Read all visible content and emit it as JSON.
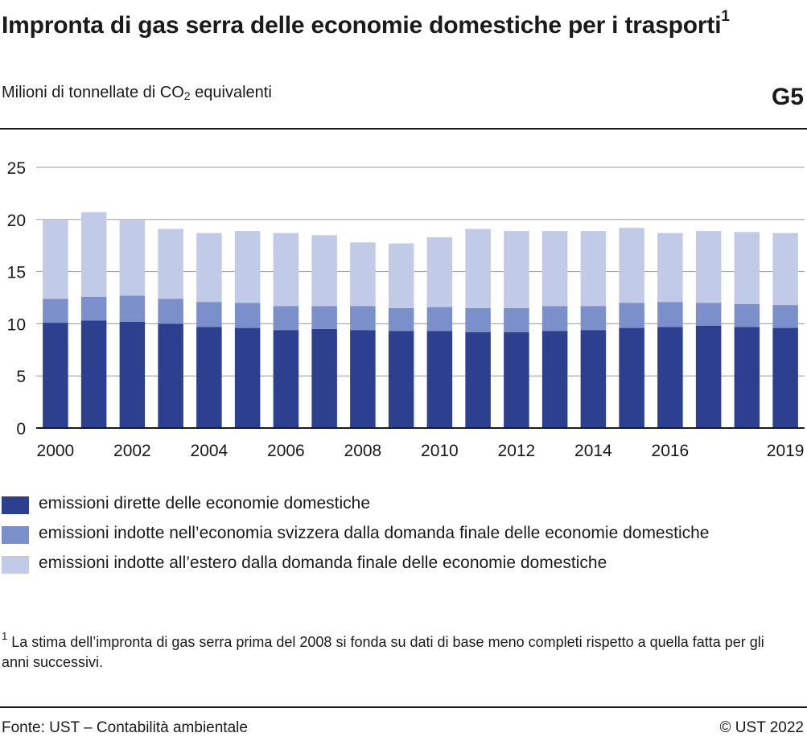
{
  "header": {
    "title": "Impronta di gas serra delle economie domestiche per i trasporti",
    "title_note": "1",
    "subtitle_pre": "Milioni di tonnellate di CO",
    "subtitle_sub": "2",
    "subtitle_post": " equivalenti",
    "code": "G5"
  },
  "chart_data": {
    "type": "bar",
    "stacked": true,
    "x": [
      2000,
      2001,
      2002,
      2003,
      2004,
      2005,
      2006,
      2007,
      2008,
      2009,
      2010,
      2011,
      2012,
      2013,
      2014,
      2015,
      2016,
      2017,
      2018,
      2019
    ],
    "xtick_labels": [
      "2000",
      "",
      "2002",
      "",
      "2004",
      "",
      "2006",
      "",
      "2008",
      "",
      "2010",
      "",
      "2012",
      "",
      "2014",
      "",
      "2016",
      "",
      "",
      "2019"
    ],
    "ylim": [
      0,
      25
    ],
    "yticks": [
      0,
      5,
      10,
      15,
      20,
      25
    ],
    "grid": true,
    "legend_position": "bottom",
    "series": [
      {
        "name": "emissioni dirette delle economie domestiche",
        "color": "#2d3f8f",
        "values": [
          10.1,
          10.3,
          10.2,
          10.0,
          9.7,
          9.6,
          9.4,
          9.5,
          9.4,
          9.3,
          9.3,
          9.2,
          9.2,
          9.3,
          9.4,
          9.6,
          9.7,
          9.8,
          9.7,
          9.6
        ]
      },
      {
        "name": "emissioni indotte nell’economia svizzera dalla domanda finale delle economie domestiche",
        "color": "#7b8fcb",
        "values": [
          2.3,
          2.3,
          2.5,
          2.4,
          2.4,
          2.4,
          2.3,
          2.2,
          2.3,
          2.2,
          2.3,
          2.3,
          2.3,
          2.4,
          2.3,
          2.4,
          2.4,
          2.2,
          2.2,
          2.2
        ]
      },
      {
        "name": "emissioni indotte all’estero dalla domanda finale delle economie domestiche",
        "color": "#c1cbe8",
        "values": [
          7.6,
          8.1,
          7.3,
          6.7,
          6.6,
          6.9,
          7.0,
          6.8,
          6.1,
          6.2,
          6.7,
          7.6,
          7.4,
          7.2,
          7.2,
          7.2,
          6.6,
          6.9,
          6.9,
          6.9
        ]
      }
    ]
  },
  "footnote": {
    "mark": "1",
    "text": "La stima dell’impronta di gas serra prima del 2008 si fonda su dati di base meno completi rispetto a quella fatta per gli anni successivi."
  },
  "footer": {
    "source": "Fonte: UST – Contabilità ambientale",
    "copyright": "© UST 2022"
  }
}
